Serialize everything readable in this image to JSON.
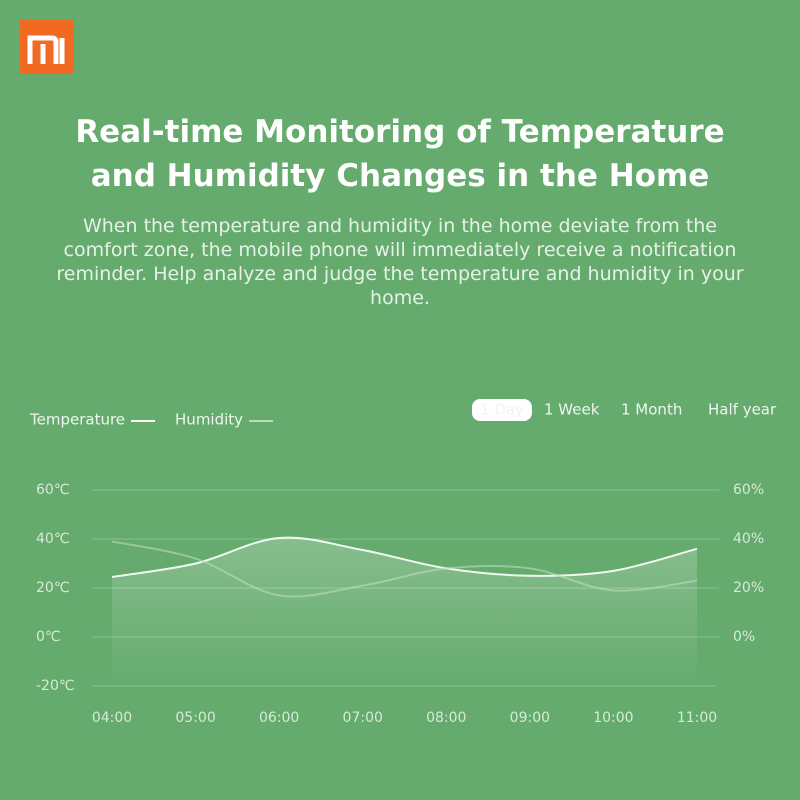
{
  "header": {
    "title": "Real-time Monitoring of Temperature and Humidity Changes in the Home",
    "description": "When the temperature and humidity in the home deviate from the comfort zone, the mobile phone will immediately receive a notification reminder. Help analyze and judge the temperature and humidity in your home."
  },
  "range_options": [
    "1 Day",
    "1 Week",
    "1 Month",
    "Half year"
  ],
  "selected_range": 0,
  "chart_data": {
    "type": "line",
    "categories": [
      "04:00",
      "05:00",
      "06:00",
      "07:00",
      "08:00",
      "09:00",
      "10:00",
      "11:00"
    ],
    "series": [
      {
        "name": "Temperature",
        "color": "#ffffff",
        "values": [
          24.5,
          30,
          40.4,
          35.5,
          28,
          25,
          27,
          36
        ]
      },
      {
        "name": "Humidity",
        "color": "#b9dcbd",
        "axis": "y2",
        "values": [
          39,
          32,
          17,
          21,
          28,
          28,
          19,
          23
        ]
      }
    ],
    "ylim": [
      -20,
      60
    ],
    "yticks": [
      {
        "value": -20,
        "label": "-20℃"
      },
      {
        "value": 0,
        "label": "0℃"
      },
      {
        "value": 20,
        "label": "20℃"
      },
      {
        "value": 40,
        "label": "40℃"
      },
      {
        "value": 60,
        "label": "60℃"
      }
    ],
    "y2lim": [
      -20,
      60
    ],
    "y2ticks": [
      {
        "value": 0,
        "label": "0%"
      },
      {
        "value": 20,
        "label": "20%"
      },
      {
        "value": 40,
        "label": "40%"
      },
      {
        "value": 60,
        "label": "60%"
      }
    ],
    "grid": true
  }
}
